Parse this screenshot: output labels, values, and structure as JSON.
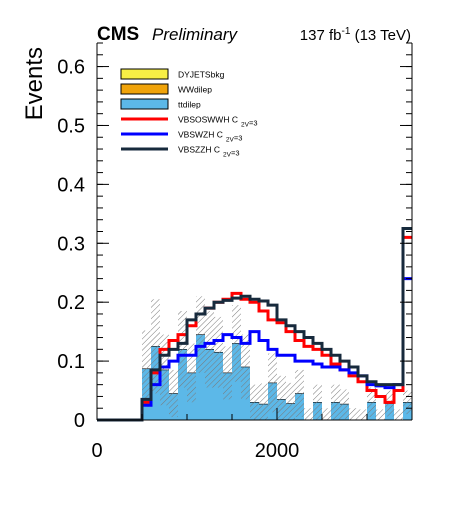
{
  "header": {
    "experiment": "CMS",
    "status": "Preliminary",
    "lumi_value": "137 fb",
    "lumi_exp": "-1",
    "lumi_energy": " (13 TeV)"
  },
  "chart_data": {
    "type": "histogram",
    "ylabel": "Events",
    "xlabel": "",
    "xlim": [
      0,
      3500
    ],
    "ylim": [
      0,
      0.64
    ],
    "yticks": [
      0,
      0.1,
      0.2,
      0.3,
      0.4,
      0.5,
      0.6
    ],
    "ytick_labels": [
      "0",
      "0.1",
      "0.2",
      "0.3",
      "0.4",
      "0.5",
      "0.6"
    ],
    "xticks": [
      0,
      2000
    ],
    "xtick_labels": [
      "0",
      "2000"
    ],
    "bin_width": 100,
    "grid": false,
    "legend_position": "top-left",
    "stack": [
      {
        "name": "DYJETSbkg",
        "color": "#f7ef45",
        "values": [
          0,
          0,
          0,
          0,
          0,
          0,
          0,
          0,
          0,
          0,
          0,
          0,
          0,
          0,
          0,
          0,
          0,
          0,
          0,
          0,
          0,
          0,
          0,
          0,
          0,
          0,
          0,
          0,
          0,
          0,
          0,
          0,
          0,
          0,
          0
        ]
      },
      {
        "name": "WWdilep",
        "color": "#f0a30a",
        "values": [
          0,
          0,
          0,
          0,
          0,
          0,
          0,
          0,
          0,
          0,
          0,
          0,
          0,
          0,
          0,
          0,
          0,
          0,
          0,
          0,
          0,
          0,
          0,
          0,
          0,
          0,
          0,
          0,
          0,
          0,
          0,
          0,
          0,
          0,
          0
        ]
      },
      {
        "name": "ttdilep",
        "color": "#5cb8e8",
        "values": [
          0,
          0,
          0,
          0,
          0,
          0.087,
          0.125,
          0.085,
          0.045,
          0.12,
          0.08,
          0.145,
          0.12,
          0.115,
          0.08,
          0.13,
          0.09,
          0.03,
          0.027,
          0.063,
          0.035,
          0.028,
          0.045,
          0,
          0.03,
          0,
          0.03,
          0.027,
          0,
          0,
          0.03,
          0,
          0.028,
          0,
          0.03
        ]
      }
    ],
    "series": [
      {
        "name": "VBSOSWWH C",
        "subscript": "2V",
        "suffix": "=3",
        "color": "#ff0000",
        "values": [
          0,
          0,
          0,
          0,
          0,
          0.03,
          0.08,
          0.12,
          0.135,
          0.145,
          0.16,
          0.18,
          0.19,
          0.2,
          0.205,
          0.215,
          0.205,
          0.2,
          0.185,
          0.17,
          0.165,
          0.15,
          0.135,
          0.125,
          0.12,
          0.11,
          0.095,
          0.085,
          0.075,
          0.065,
          0.05,
          0.04,
          0.03,
          0.05,
          0.31
        ]
      },
      {
        "name": "VBSWZH C",
        "subscript": "2V",
        "suffix": "=3",
        "color": "#0000ff",
        "values": [
          0,
          0,
          0,
          0,
          0,
          0.025,
          0.06,
          0.09,
          0.1,
          0.11,
          0.11,
          0.125,
          0.13,
          0.135,
          0.145,
          0.14,
          0.13,
          0.15,
          0.135,
          0.12,
          0.11,
          0.11,
          0.1,
          0.1,
          0.095,
          0.09,
          0.09,
          0.085,
          0.08,
          0.075,
          0.06,
          0.058,
          0.055,
          0.06,
          0.24
        ]
      },
      {
        "name": "VBSZZH C",
        "subscript": "2V",
        "suffix": "=3",
        "color": "#172a3c",
        "values": [
          0,
          0,
          0,
          0,
          0,
          0.035,
          0.085,
          0.11,
          0.12,
          0.13,
          0.17,
          0.18,
          0.19,
          0.2,
          0.203,
          0.207,
          0.21,
          0.205,
          0.202,
          0.195,
          0.17,
          0.16,
          0.15,
          0.14,
          0.13,
          0.12,
          0.11,
          0.1,
          0.09,
          0.075,
          0.065,
          0.06,
          0.06,
          0.06,
          0.325
        ]
      }
    ],
    "uncertainty": {
      "label": "",
      "values": [
        0,
        0,
        0,
        0,
        0,
        0.065,
        0.08,
        0.06,
        0.04,
        0.065,
        0.05,
        0.065,
        0.065,
        0.06,
        0.045,
        0.065,
        0.055,
        0.03,
        0.035,
        0.05,
        0.04,
        0.035,
        0.04,
        0.02,
        0.03,
        0.02,
        0.03,
        0.025,
        0.02,
        0.018,
        0.025,
        0.018,
        0.022,
        0.018,
        0.02
      ]
    },
    "colors": {
      "uncertainty_hatch": "#7a7a7a",
      "axis": "#000000"
    }
  }
}
